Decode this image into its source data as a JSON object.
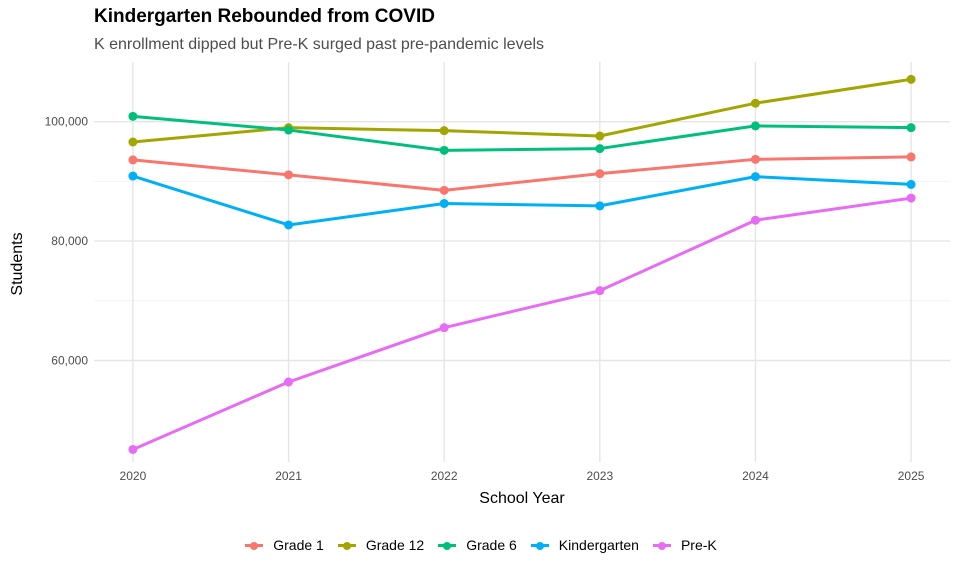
{
  "chart_data": {
    "type": "line",
    "title": "Kindergarten Rebounded from COVID",
    "subtitle": "K enrollment dipped but Pre-K surged past pre-pandemic levels",
    "xlabel": "School Year",
    "ylabel": "Students",
    "x": [
      2020,
      2021,
      2022,
      2023,
      2024,
      2025
    ],
    "x_tick_labels": [
      "2020",
      "2021",
      "2022",
      "2023",
      "2024",
      "2025"
    ],
    "y_ticks": [
      60000,
      80000,
      100000
    ],
    "y_tick_labels": [
      "60,000",
      "80,000",
      "100,000"
    ],
    "ylim": [
      43000,
      110000
    ],
    "xlim": [
      2019.75,
      2025.25
    ],
    "grid": true,
    "legend_position": "bottom",
    "series": [
      {
        "name": "Grade 1",
        "color": "#F8766D",
        "values": [
          93600,
          91100,
          88500,
          91300,
          93700,
          94100
        ]
      },
      {
        "name": "Grade 12",
        "color": "#A3A500",
        "values": [
          96600,
          99000,
          98500,
          97600,
          103100,
          107100
        ]
      },
      {
        "name": "Grade 6",
        "color": "#00BF7D",
        "values": [
          100900,
          98600,
          95200,
          95500,
          99300,
          99000
        ]
      },
      {
        "name": "Kindergarten",
        "color": "#00B0F6",
        "values": [
          90900,
          82700,
          86300,
          85900,
          90800,
          89500
        ]
      },
      {
        "name": "Pre-K",
        "color": "#E76BF3",
        "values": [
          45100,
          56400,
          65500,
          71700,
          83500,
          87200
        ]
      }
    ]
  }
}
